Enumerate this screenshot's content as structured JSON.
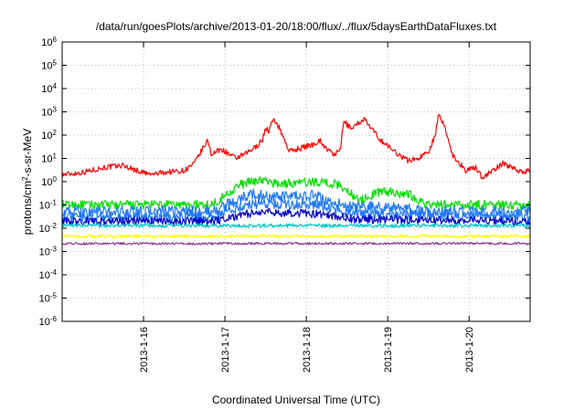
{
  "chart_data": {
    "type": "line",
    "title": "/data/run/goesPlots/archive/2013-01-20/18:00/flux/../flux/5daysEarthDataFluxes.txt",
    "xlabel": "Coordinated Universal Time (UTC)",
    "ylabel": {
      "pre": "protons/cm",
      "sup": "2",
      "post": "-s-sr-MeV"
    },
    "yscale": "log",
    "ylim": [
      1e-06,
      1000000.0
    ],
    "xlim": [
      "2013-01-15 00:00",
      "2013-01-20 18:00"
    ],
    "grid": true,
    "y_ticks": [
      {
        "base": "10",
        "exp": "-6",
        "value": 1e-06
      },
      {
        "base": "10",
        "exp": "-5",
        "value": 1e-05
      },
      {
        "base": "10",
        "exp": "-4",
        "value": 0.0001
      },
      {
        "base": "10",
        "exp": "-3",
        "value": 0.001
      },
      {
        "base": "10",
        "exp": "-2",
        "value": 0.01
      },
      {
        "base": "10",
        "exp": "-1",
        "value": 0.1
      },
      {
        "base": "10",
        "exp": "0",
        "value": 1
      },
      {
        "base": "10",
        "exp": "1",
        "value": 10
      },
      {
        "base": "10",
        "exp": "2",
        "value": 100
      },
      {
        "base": "10",
        "exp": "3",
        "value": 1000
      },
      {
        "base": "10",
        "exp": "4",
        "value": 10000
      },
      {
        "base": "10",
        "exp": "5",
        "value": 100000
      },
      {
        "base": "10",
        "exp": "6",
        "value": 1000000
      }
    ],
    "x_ticks": [
      {
        "label": "2013-1-16",
        "value": "2013-01-16 00:00"
      },
      {
        "label": "2013-1-17",
        "value": "2013-01-17 00:00"
      },
      {
        "label": "2013-1-18",
        "value": "2013-01-18 00:00"
      },
      {
        "label": "2013-1-19",
        "value": "2013-01-19 00:00"
      },
      {
        "label": "2013-1-20",
        "value": "2013-01-20 00:00"
      }
    ],
    "series": [
      {
        "color": "#ff0000",
        "noise": 0.12,
        "points": [
          [
            "2013-01-15 00:00",
            2.0
          ],
          [
            "2013-01-15 06:00",
            2.5
          ],
          [
            "2013-01-15 12:00",
            4.0
          ],
          [
            "2013-01-15 18:00",
            5.0
          ],
          [
            "2013-01-15 22:00",
            3.0
          ],
          [
            "2013-01-16 02:00",
            2.0
          ],
          [
            "2013-01-16 06:00",
            2.5
          ],
          [
            "2013-01-16 12:00",
            3.0
          ],
          [
            "2013-01-16 15:00",
            6.0
          ],
          [
            "2013-01-16 17:00",
            20.0
          ],
          [
            "2013-01-16 19:00",
            60.0
          ],
          [
            "2013-01-16 20:00",
            15.0
          ],
          [
            "2013-01-16 23:00",
            25.0
          ],
          [
            "2013-01-17 03:00",
            10.0
          ],
          [
            "2013-01-17 06:00",
            15.0
          ],
          [
            "2013-01-17 09:00",
            30.0
          ],
          [
            "2013-01-17 11:00",
            60.0
          ],
          [
            "2013-01-17 12:00",
            200.0
          ],
          [
            "2013-01-17 13:00",
            150.0
          ],
          [
            "2013-01-17 14:00",
            400.0
          ],
          [
            "2013-01-17 15:00",
            400.0
          ],
          [
            "2013-01-17 17:00",
            100.0
          ],
          [
            "2013-01-17 19:00",
            20.0
          ],
          [
            "2013-01-17 23:00",
            30.0
          ],
          [
            "2013-01-18 02:00",
            40.0
          ],
          [
            "2013-01-18 04:00",
            60.0
          ],
          [
            "2013-01-18 06:00",
            25.0
          ],
          [
            "2013-01-18 08:00",
            15.0
          ],
          [
            "2013-01-18 10:00",
            20.0
          ],
          [
            "2013-01-18 11:00",
            400.0
          ],
          [
            "2013-01-18 13:00",
            200.0
          ],
          [
            "2013-01-18 15:00",
            300.0
          ],
          [
            "2013-01-18 17:00",
            500.0
          ],
          [
            "2013-01-18 19:00",
            200.0
          ],
          [
            "2013-01-18 22:00",
            60.0
          ],
          [
            "2013-01-19 02:00",
            20.0
          ],
          [
            "2013-01-19 06:00",
            8.0
          ],
          [
            "2013-01-19 09:00",
            10.0
          ],
          [
            "2013-01-19 12:00",
            20.0
          ],
          [
            "2013-01-19 14:00",
            100.0
          ],
          [
            "2013-01-19 15:00",
            700.0
          ],
          [
            "2013-01-19 17:00",
            200.0
          ],
          [
            "2013-01-19 19:00",
            15.0
          ],
          [
            "2013-01-19 23:00",
            3.0
          ],
          [
            "2013-01-20 02:00",
            4.0
          ],
          [
            "2013-01-20 04:00",
            1.5
          ],
          [
            "2013-01-20 07:00",
            3.0
          ],
          [
            "2013-01-20 10:00",
            6.0
          ],
          [
            "2013-01-20 13:00",
            4.0
          ],
          [
            "2013-01-20 16:00",
            2.5
          ],
          [
            "2013-01-20 18:00",
            3.0
          ]
        ]
      },
      {
        "color": "#00e000",
        "noise": 0.2,
        "points": [
          [
            "2013-01-15 00:00",
            0.1
          ],
          [
            "2013-01-16 00:00",
            0.1
          ],
          [
            "2013-01-16 20:00",
            0.1
          ],
          [
            "2013-01-17 00:00",
            0.25
          ],
          [
            "2013-01-17 04:00",
            0.7
          ],
          [
            "2013-01-17 10:00",
            1.2
          ],
          [
            "2013-01-17 16:00",
            0.8
          ],
          [
            "2013-01-18 04:00",
            1.0
          ],
          [
            "2013-01-18 10:00",
            0.7
          ],
          [
            "2013-01-18 16:00",
            0.15
          ],
          [
            "2013-01-18 22:00",
            0.4
          ],
          [
            "2013-01-19 06:00",
            0.3
          ],
          [
            "2013-01-19 12:00",
            0.1
          ],
          [
            "2013-01-20 18:00",
            0.1
          ]
        ]
      },
      {
        "color": "#1e78ff",
        "noise": 0.25,
        "points": [
          [
            "2013-01-15 00:00",
            0.05
          ],
          [
            "2013-01-16 20:00",
            0.05
          ],
          [
            "2013-01-17 02:00",
            0.12
          ],
          [
            "2013-01-17 08:00",
            0.3
          ],
          [
            "2013-01-17 14:00",
            0.2
          ],
          [
            "2013-01-18 02:00",
            0.25
          ],
          [
            "2013-01-18 12:00",
            0.08
          ],
          [
            "2013-01-19 00:00",
            0.08
          ],
          [
            "2013-01-19 12:00",
            0.05
          ],
          [
            "2013-01-20 18:00",
            0.05
          ]
        ]
      },
      {
        "color": "#1e78ff",
        "noise": 0.22,
        "points": [
          [
            "2013-01-15 00:00",
            0.03
          ],
          [
            "2013-01-16 20:00",
            0.03
          ],
          [
            "2013-01-17 04:00",
            0.08
          ],
          [
            "2013-01-17 10:00",
            0.12
          ],
          [
            "2013-01-18 04:00",
            0.1
          ],
          [
            "2013-01-18 14:00",
            0.04
          ],
          [
            "2013-01-20 18:00",
            0.03
          ]
        ]
      },
      {
        "color": "#0000cc",
        "noise": 0.18,
        "points": [
          [
            "2013-01-15 00:00",
            0.02
          ],
          [
            "2013-01-16 20:00",
            0.02
          ],
          [
            "2013-01-17 06:00",
            0.04
          ],
          [
            "2013-01-17 12:00",
            0.05
          ],
          [
            "2013-01-18 04:00",
            0.04
          ],
          [
            "2013-01-18 14:00",
            0.025
          ],
          [
            "2013-01-20 18:00",
            0.02
          ]
        ]
      },
      {
        "color": "#00c8c8",
        "noise": 0.08,
        "points": [
          [
            "2013-01-15 00:00",
            0.013
          ],
          [
            "2013-01-20 18:00",
            0.013
          ]
        ]
      },
      {
        "color": "#ffff00",
        "noise": 0.07,
        "points": [
          [
            "2013-01-15 00:00",
            0.0045
          ],
          [
            "2013-01-20 18:00",
            0.0045
          ]
        ]
      },
      {
        "color": "#8b3a8b",
        "noise": 0.05,
        "points": [
          [
            "2013-01-15 00:00",
            0.0022
          ],
          [
            "2013-01-20 18:00",
            0.0022
          ]
        ]
      }
    ]
  }
}
